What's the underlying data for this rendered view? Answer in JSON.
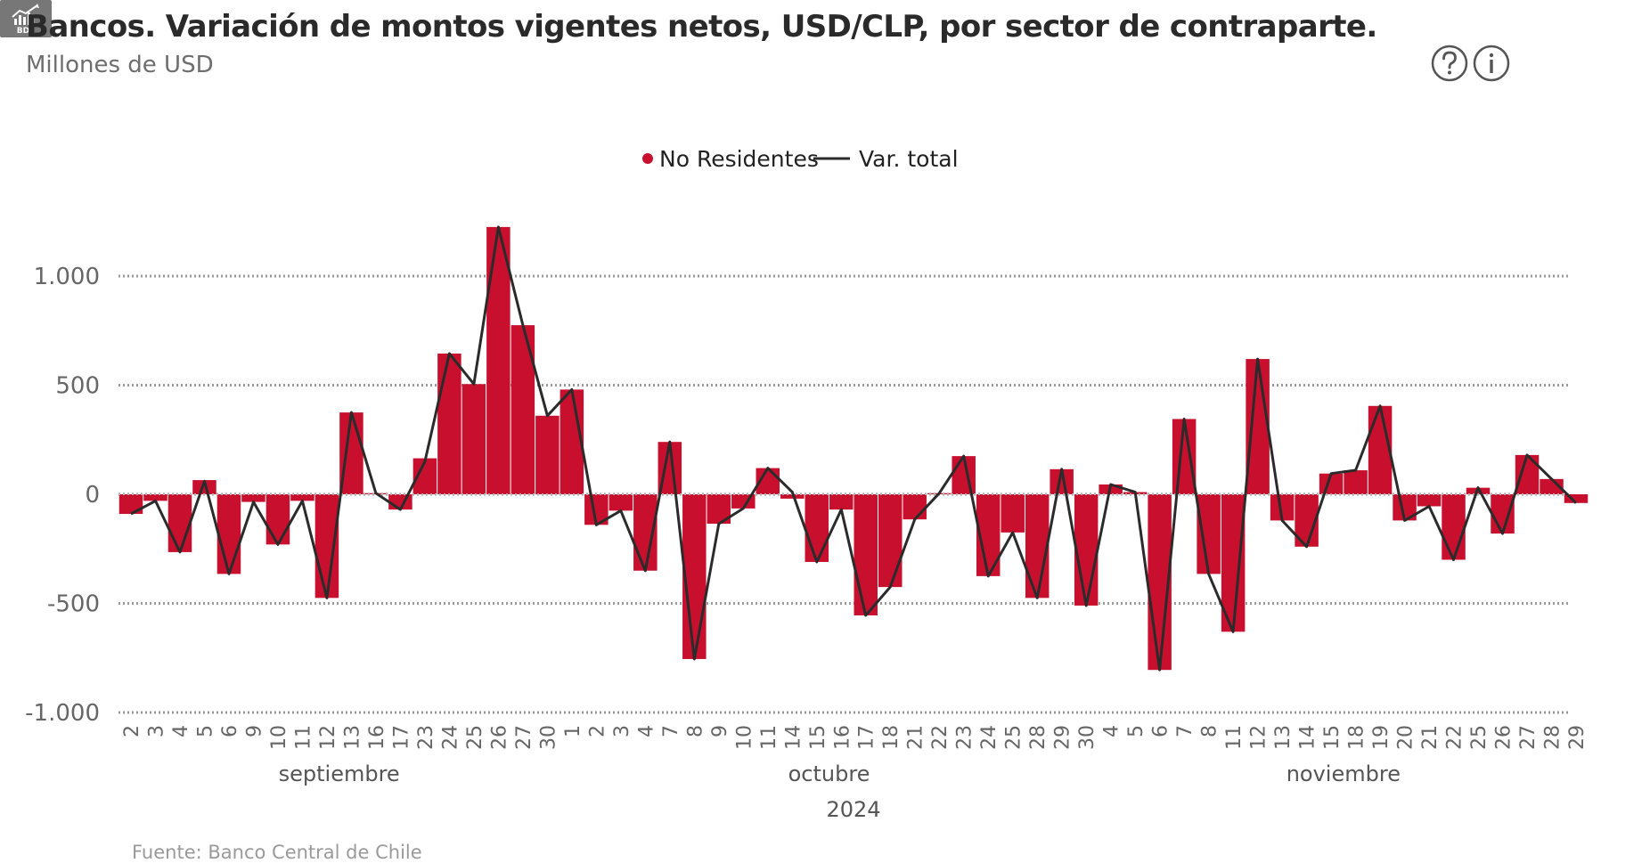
{
  "title": "Bancos. Variación de montos vigentes netos, USD/CLP, por sector de contraparte.",
  "subtitle": "Millones de USD",
  "source": "Fuente: Banco Central de Chile",
  "buttons": {
    "help_icon": "question-circle-icon",
    "info_icon": "info-circle-icon",
    "bde_label": "BDE",
    "bde_icon": "bde-chart-icon"
  },
  "colors": {
    "bar": "#c8102e",
    "line": "#2b2b2b",
    "grid": "#9a9a9a"
  },
  "chart_data": {
    "type": "bar",
    "legend": {
      "bar_label": "No Residentes",
      "line_label": "Var. total",
      "position": "top-center"
    },
    "categories": [
      "2",
      "3",
      "4",
      "5",
      "6",
      "9",
      "10",
      "11",
      "12",
      "13",
      "16",
      "17",
      "23",
      "24",
      "25",
      "26",
      "27",
      "30",
      "1",
      "2",
      "3",
      "4",
      "7",
      "8",
      "9",
      "10",
      "11",
      "14",
      "15",
      "16",
      "17",
      "18",
      "21",
      "22",
      "23",
      "24",
      "25",
      "28",
      "29",
      "30",
      "4",
      "5",
      "6",
      "7",
      "8",
      "11",
      "12",
      "13",
      "14",
      "15",
      "18",
      "19",
      "20",
      "21",
      "22",
      "25",
      "26",
      "27",
      "28",
      "29"
    ],
    "series": [
      {
        "name": "No Residentes",
        "type": "bar",
        "values": [
          -90,
          -30,
          -265,
          65,
          -365,
          -35,
          -230,
          -30,
          -475,
          375,
          5,
          -70,
          165,
          645,
          505,
          1225,
          775,
          360,
          480,
          -140,
          -75,
          -350,
          240,
          -755,
          -135,
          -65,
          120,
          -20,
          -310,
          -70,
          -555,
          -425,
          -115,
          5,
          175,
          -375,
          -175,
          -475,
          115,
          -510,
          45,
          10,
          -805,
          345,
          -365,
          -630,
          620,
          -120,
          -240,
          95,
          110,
          405,
          -120,
          -55,
          -300,
          30,
          -180,
          180,
          70,
          -40
        ]
      },
      {
        "name": "Var. total",
        "type": "line",
        "values": [
          -90,
          -30,
          -265,
          60,
          -365,
          -35,
          -230,
          -30,
          -475,
          375,
          5,
          -70,
          150,
          645,
          505,
          1225,
          775,
          360,
          480,
          -140,
          -75,
          -350,
          240,
          -755,
          -135,
          -65,
          120,
          10,
          -310,
          -70,
          -555,
          -425,
          -115,
          5,
          175,
          -375,
          -175,
          -475,
          115,
          -510,
          45,
          10,
          -805,
          345,
          -365,
          -630,
          620,
          -120,
          -240,
          95,
          110,
          405,
          -120,
          -55,
          -300,
          30,
          -180,
          180,
          70,
          -40
        ]
      }
    ],
    "ylim": [
      -1000,
      1000
    ],
    "yticks": [
      -1000,
      -500,
      0,
      500,
      1000
    ],
    "ytick_labels": [
      "-1.000",
      "-500",
      "0",
      "500",
      "1.000"
    ],
    "months": [
      {
        "label": "septiembre",
        "start": 0,
        "end": 17
      },
      {
        "label": "octubre",
        "start": 18,
        "end": 39
      },
      {
        "label": "noviembre",
        "start": 40,
        "end": 59
      }
    ],
    "year_label": "2024",
    "grid": true,
    "xlabel": "",
    "ylabel": ""
  }
}
